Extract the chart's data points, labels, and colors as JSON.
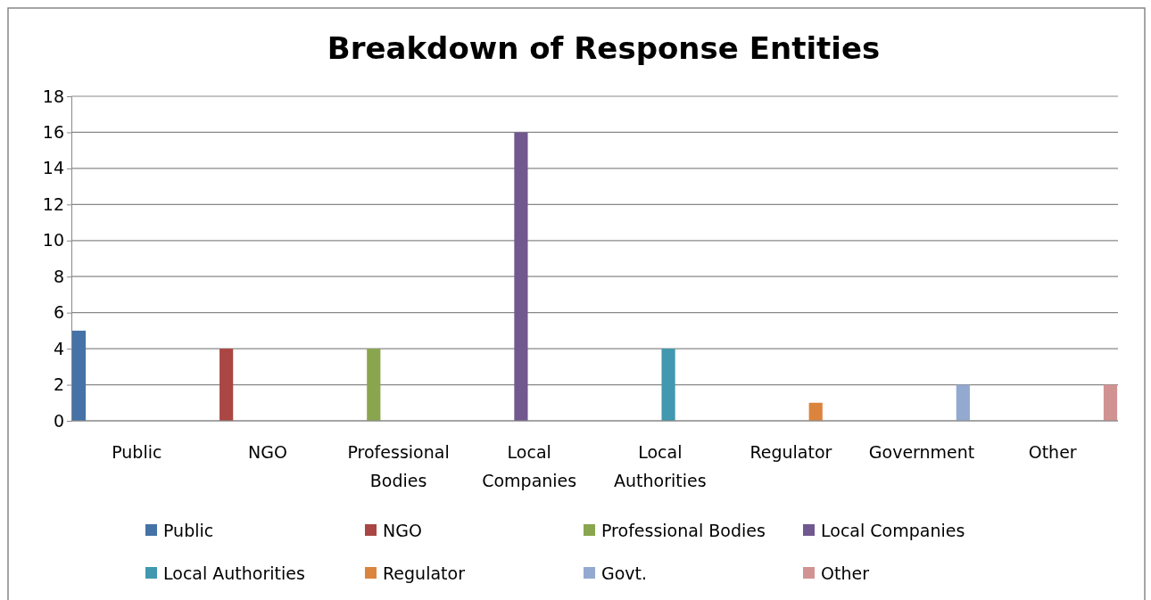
{
  "chart_data": {
    "type": "bar",
    "title": "Breakdown of Response Entities",
    "categories": [
      "Public",
      "NGO",
      "Professional Bodies",
      "Local Companies",
      "Local Authorities",
      "Regulator",
      "Government",
      "Other"
    ],
    "series": [
      {
        "name": "Public",
        "color": "#4572a7",
        "values": [
          5,
          null,
          null,
          null,
          null,
          null,
          null,
          null
        ]
      },
      {
        "name": "NGO",
        "color": "#aa4643",
        "values": [
          null,
          4,
          null,
          null,
          null,
          null,
          null,
          null
        ]
      },
      {
        "name": "Professional Bodies",
        "color": "#89a54e",
        "values": [
          null,
          null,
          4,
          null,
          null,
          null,
          null,
          null
        ]
      },
      {
        "name": "Local Companies",
        "color": "#71588f",
        "values": [
          null,
          null,
          null,
          16,
          null,
          null,
          null,
          null
        ]
      },
      {
        "name": "Local Authorities",
        "color": "#4198af",
        "values": [
          null,
          null,
          null,
          null,
          4,
          null,
          null,
          null
        ]
      },
      {
        "name": "Regulator",
        "color": "#db843d",
        "values": [
          null,
          null,
          null,
          null,
          null,
          1,
          null,
          null
        ]
      },
      {
        "name": "Govt.",
        "color": "#93a9cf",
        "values": [
          null,
          null,
          null,
          null,
          null,
          null,
          2,
          null
        ]
      },
      {
        "name": "Other",
        "color": "#d19392",
        "values": [
          null,
          null,
          null,
          null,
          null,
          null,
          null,
          2
        ]
      }
    ],
    "ylim": [
      0,
      18
    ],
    "yticks": [
      0,
      2,
      4,
      6,
      8,
      10,
      12,
      14,
      16,
      18
    ],
    "grid": "y",
    "legend": "bottom"
  }
}
